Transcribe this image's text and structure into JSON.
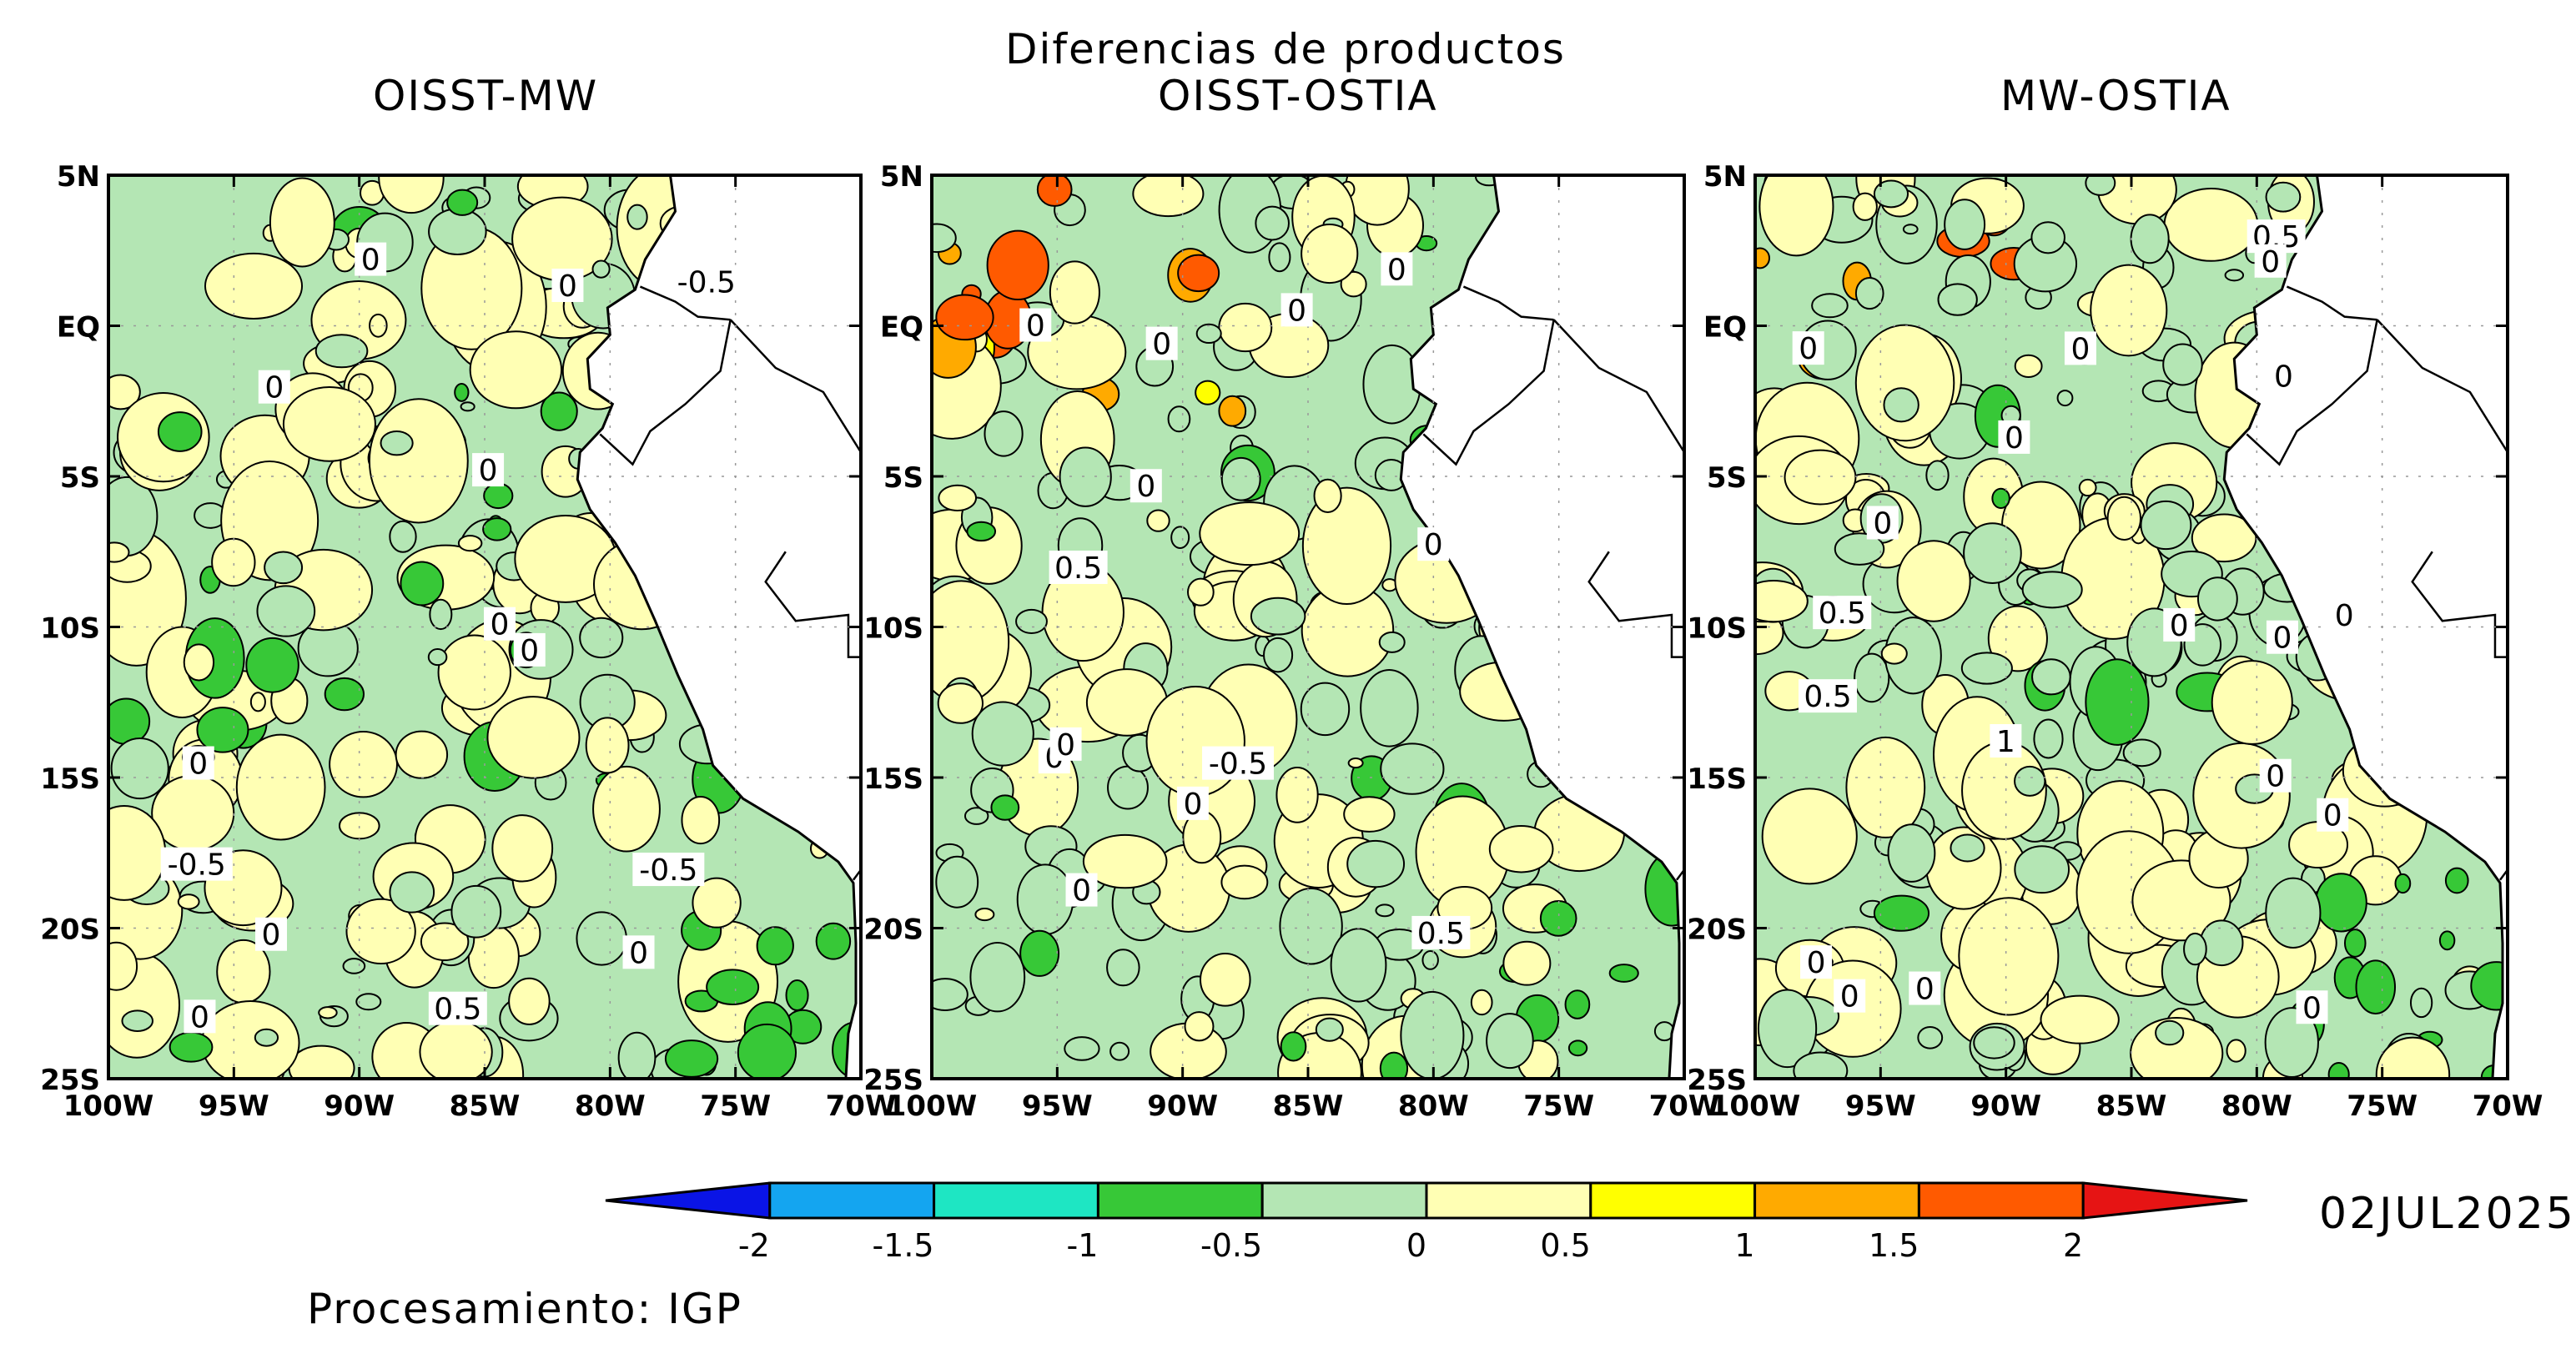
{
  "figure": {
    "title": "Diferencias de productos",
    "date": "02JUL2025",
    "credit": "Procesamiento: IGP"
  },
  "axes": {
    "lat_ticks": [
      "5N",
      "EQ",
      "5S",
      "10S",
      "15S",
      "20S",
      "25S"
    ],
    "lon_ticks": [
      "100W",
      "95W",
      "90W",
      "85W",
      "80W",
      "75W",
      "70W"
    ]
  },
  "panels": [
    {
      "title": "OISST-MW",
      "contour_labels": [
        "0",
        "0.5",
        "0",
        "0",
        "0",
        "0",
        "-0.5",
        "0",
        "0",
        "-0.5",
        "0",
        "0",
        "0",
        "-0.5"
      ]
    },
    {
      "title": "OISST-OSTIA",
      "contour_labels": [
        "0.5",
        "0.5",
        "0",
        "0",
        "0",
        "0",
        "0",
        "0",
        "0",
        "0",
        "0",
        "0",
        "-0.5"
      ]
    },
    {
      "title": "MW-OSTIA",
      "contour_labels": [
        "0.5",
        "1",
        "0.5",
        "0.5",
        "0",
        "0",
        "0",
        "0",
        "0",
        "0",
        "0",
        "0",
        "0",
        "0",
        "0",
        "0",
        "0",
        "0",
        "0"
      ]
    }
  ],
  "colorbar": {
    "labels": [
      "-2",
      "-1.5",
      "-1",
      "-0.5",
      "0",
      "0.5",
      "1",
      "1.5",
      "2"
    ],
    "colors": [
      "#0a14e6",
      "#14a5f0",
      "#1ee6c3",
      "#37c837",
      "#b4e6b4",
      "#ffffb4",
      "#ffff00",
      "#ffaa00",
      "#ff5a00",
      "#e61414"
    ]
  },
  "colors": {
    "ocean_neutral_negative": "#b4e6b4",
    "ocean_neutral_positive": "#ffffb4",
    "land": "#ffffff"
  }
}
